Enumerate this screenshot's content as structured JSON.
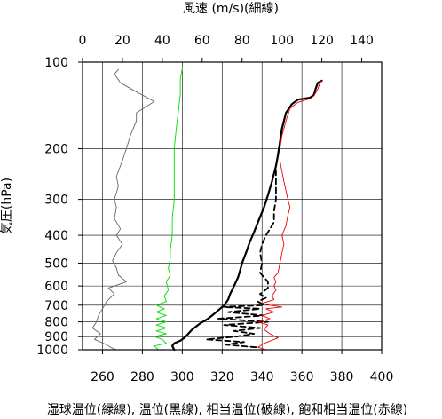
{
  "chart_data": {
    "type": "line",
    "top_axis": {
      "label": "風速 (m/s)(細線)",
      "ticks": [
        0,
        20,
        40,
        60,
        80,
        100,
        120,
        140
      ],
      "range": [
        0,
        150
      ]
    },
    "bottom_axis": {
      "label": "湿球温位(緑線), 温位(黒線), 相当温位(破線), 飽和相当温位(赤線)",
      "ticks": [
        260,
        280,
        300,
        320,
        340,
        360,
        380,
        400
      ],
      "range": [
        250,
        400
      ]
    },
    "left_axis": {
      "label": "気圧(hPa)",
      "ticks": [
        100,
        200,
        300,
        400,
        500,
        600,
        700,
        800,
        900,
        1000
      ],
      "range": [
        1000,
        100
      ],
      "scale": "log"
    },
    "grid": true,
    "series": [
      {
        "key": "wind_speed",
        "axis": "top",
        "color": "#666666",
        "style": "thin",
        "points": [
          [
            17,
            1000
          ],
          [
            14,
            980
          ],
          [
            12,
            960
          ],
          [
            6,
            920
          ],
          [
            9,
            880
          ],
          [
            5,
            840
          ],
          [
            7,
            800
          ],
          [
            8,
            760
          ],
          [
            10,
            720
          ],
          [
            12,
            680
          ],
          [
            16,
            640
          ],
          [
            13,
            610
          ],
          [
            22,
            580
          ],
          [
            18,
            550
          ],
          [
            17,
            520
          ],
          [
            15,
            490
          ],
          [
            17,
            460
          ],
          [
            20,
            430
          ],
          [
            17,
            400
          ],
          [
            19,
            380
          ],
          [
            16,
            350
          ],
          [
            17,
            320
          ],
          [
            16,
            300
          ],
          [
            18,
            270
          ],
          [
            17,
            250
          ],
          [
            20,
            220
          ],
          [
            22,
            200
          ],
          [
            24,
            180
          ],
          [
            27,
            160
          ],
          [
            27,
            150
          ],
          [
            36,
            137
          ],
          [
            28,
            128
          ],
          [
            19,
            118
          ],
          [
            16,
            110
          ],
          [
            18,
            106
          ]
        ]
      },
      {
        "key": "wet_bulb_potential_temperature",
        "axis": "bottom",
        "color": "#00dd00",
        "style": "thin",
        "points": [
          [
            288,
            1000
          ],
          [
            286,
            970
          ],
          [
            292,
            950
          ],
          [
            290,
            920
          ],
          [
            286,
            900
          ],
          [
            292,
            880
          ],
          [
            287,
            860
          ],
          [
            292,
            840
          ],
          [
            287,
            820
          ],
          [
            292,
            800
          ],
          [
            287,
            780
          ],
          [
            292,
            760
          ],
          [
            287,
            740
          ],
          [
            291,
            720
          ],
          [
            287,
            700
          ],
          [
            292,
            680
          ],
          [
            291,
            650
          ],
          [
            293,
            620
          ],
          [
            292,
            580
          ],
          [
            294,
            550
          ],
          [
            293,
            520
          ],
          [
            294,
            480
          ],
          [
            294,
            450
          ],
          [
            295,
            400
          ],
          [
            295,
            350
          ],
          [
            296,
            300
          ],
          [
            296,
            250
          ],
          [
            296,
            200
          ],
          [
            297,
            170
          ],
          [
            298,
            150
          ],
          [
            299,
            130
          ],
          [
            299,
            115
          ],
          [
            300,
            105
          ]
        ]
      },
      {
        "key": "potential_temperature",
        "axis": "bottom",
        "color": "#000000",
        "style": "thick",
        "points": [
          [
            296,
            1000
          ],
          [
            295,
            970
          ],
          [
            296,
            950
          ],
          [
            299,
            930
          ],
          [
            301,
            910
          ],
          [
            303,
            880
          ],
          [
            305,
            850
          ],
          [
            309,
            810
          ],
          [
            313,
            780
          ],
          [
            316,
            750
          ],
          [
            319,
            720
          ],
          [
            321,
            700
          ],
          [
            323,
            670
          ],
          [
            324,
            640
          ],
          [
            326,
            600
          ],
          [
            328,
            560
          ],
          [
            329,
            530
          ],
          [
            330,
            500
          ],
          [
            332,
            460
          ],
          [
            334,
            420
          ],
          [
            336,
            390
          ],
          [
            338,
            360
          ],
          [
            341,
            320
          ],
          [
            343,
            290
          ],
          [
            345,
            260
          ],
          [
            347,
            230
          ],
          [
            348,
            210
          ],
          [
            349,
            190
          ],
          [
            350,
            170
          ],
          [
            352,
            150
          ],
          [
            355,
            140
          ],
          [
            358,
            135
          ],
          [
            364,
            133
          ],
          [
            366,
            130
          ],
          [
            367,
            123
          ],
          [
            368,
            118
          ],
          [
            370,
            116
          ]
        ]
      },
      {
        "key": "equivalent_potential_temperature",
        "axis": "bottom",
        "color": "#000000",
        "style": "dashed",
        "points": [
          [
            337,
            980
          ],
          [
            322,
            960
          ],
          [
            331,
            940
          ],
          [
            312,
            920
          ],
          [
            327,
            900
          ],
          [
            336,
            880
          ],
          [
            326,
            860
          ],
          [
            339,
            840
          ],
          [
            321,
            820
          ],
          [
            343,
            800
          ],
          [
            318,
            780
          ],
          [
            341,
            760
          ],
          [
            323,
            740
          ],
          [
            339,
            720
          ],
          [
            320,
            710
          ],
          [
            341,
            700
          ],
          [
            338,
            680
          ],
          [
            342,
            660
          ],
          [
            339,
            640
          ],
          [
            343,
            610
          ],
          [
            343,
            580
          ],
          [
            339,
            540
          ],
          [
            340,
            500
          ],
          [
            339,
            460
          ],
          [
            340,
            430
          ],
          [
            342,
            400
          ],
          [
            344,
            380
          ],
          [
            346,
            360
          ],
          [
            346,
            330
          ],
          [
            347,
            300
          ],
          [
            347,
            270
          ],
          [
            347,
            250
          ],
          [
            347,
            230
          ],
          [
            348,
            210
          ],
          [
            349,
            190
          ],
          [
            350,
            175
          ]
        ]
      },
      {
        "key": "saturated_equivalent_potential_temperature",
        "axis": "bottom",
        "color": "#ee0000",
        "style": "thin",
        "points": [
          [
            342,
            1000
          ],
          [
            338,
            980
          ],
          [
            341,
            950
          ],
          [
            348,
            910
          ],
          [
            344,
            880
          ],
          [
            341,
            850
          ],
          [
            343,
            820
          ],
          [
            338,
            800
          ],
          [
            344,
            780
          ],
          [
            340,
            760
          ],
          [
            346,
            740
          ],
          [
            342,
            720
          ],
          [
            350,
            710
          ],
          [
            344,
            700
          ],
          [
            340,
            690
          ],
          [
            346,
            670
          ],
          [
            345,
            650
          ],
          [
            347,
            620
          ],
          [
            346,
            600
          ],
          [
            347,
            580
          ],
          [
            346,
            560
          ],
          [
            348,
            540
          ],
          [
            349,
            500
          ],
          [
            350,
            460
          ],
          [
            351,
            430
          ],
          [
            350,
            400
          ],
          [
            352,
            370
          ],
          [
            353,
            340
          ],
          [
            354,
            320
          ],
          [
            353,
            300
          ],
          [
            352,
            280
          ],
          [
            351,
            260
          ],
          [
            350,
            240
          ],
          [
            349,
            220
          ],
          [
            349,
            200
          ],
          [
            350,
            180
          ],
          [
            352,
            160
          ],
          [
            354,
            145
          ],
          [
            358,
            138
          ],
          [
            364,
            134
          ],
          [
            366,
            131
          ],
          [
            368,
            124
          ],
          [
            369,
            118
          ],
          [
            370,
            116
          ]
        ]
      }
    ]
  }
}
